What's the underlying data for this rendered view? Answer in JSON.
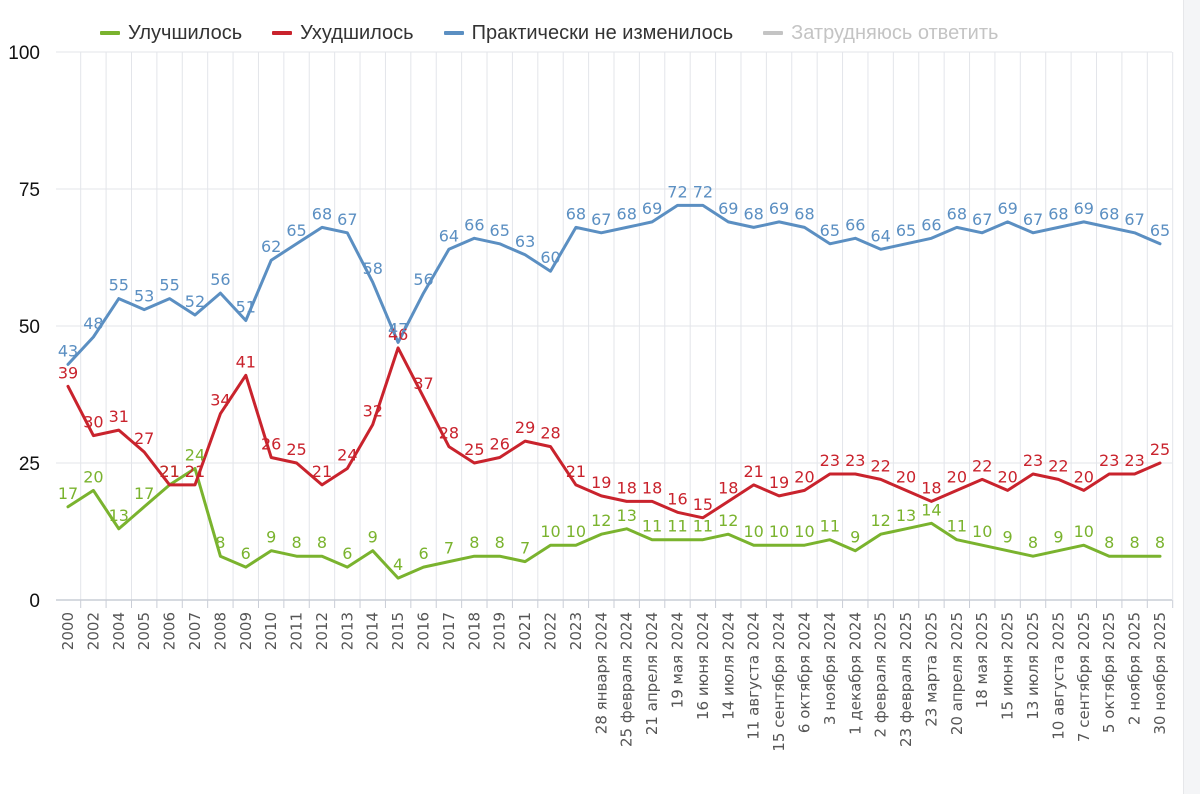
{
  "chart_data": {
    "type": "line",
    "title": "",
    "xlabel": "",
    "ylabel": "",
    "ylim": [
      0,
      100
    ],
    "yticks": [
      0,
      25,
      50,
      75,
      100
    ],
    "grid": true,
    "legend_position": "top-left",
    "categories": [
      "2000",
      "2002",
      "2004",
      "2005",
      "2006",
      "2007",
      "2008",
      "2009",
      "2010",
      "2011",
      "2012",
      "2013",
      "2014",
      "2015",
      "2016",
      "2017",
      "2018",
      "2019",
      "2021",
      "2022",
      "2023",
      "28 января 2024",
      "25 февраля 2024",
      "21 апреля 2024",
      "19 мая 2024",
      "16 июня 2024",
      "14 июля 2024",
      "11 августа 2024",
      "15 сентября 2024",
      "6 октября 2024",
      "3 ноября 2024",
      "1 декабря 2024",
      "2 февраля 2025",
      "23 февраля 2025",
      "23 марта 2025",
      "20 апреля 2025",
      "18 мая 2025",
      "15 июня 2025",
      "13 июля 2025",
      "10 августа 2025",
      "7 сентября 2025",
      "5 октября 2025",
      "2 ноября 2025",
      "30 ноября 2025"
    ],
    "series": [
      {
        "name": "Улучшилось",
        "color": "#7ab32e",
        "visible": true,
        "values": [
          17,
          20,
          13,
          17,
          21,
          24,
          8,
          6,
          9,
          8,
          8,
          6,
          9,
          4,
          6,
          7,
          8,
          8,
          7,
          10,
          10,
          12,
          13,
          11,
          11,
          11,
          12,
          10,
          10,
          10,
          11,
          9,
          12,
          13,
          14,
          11,
          10,
          9,
          8,
          9,
          10,
          8,
          8,
          8
        ]
      },
      {
        "name": "Ухудшилось",
        "color": "#c9232d",
        "visible": true,
        "values": [
          39,
          30,
          31,
          27,
          21,
          21,
          34,
          41,
          26,
          25,
          21,
          24,
          32,
          46,
          37,
          28,
          25,
          26,
          29,
          28,
          21,
          19,
          18,
          18,
          16,
          15,
          18,
          21,
          19,
          20,
          23,
          23,
          22,
          20,
          18,
          20,
          22,
          20,
          23,
          22,
          20,
          23,
          23,
          25
        ]
      },
      {
        "name": "Практически не изменилось",
        "color": "#5b8fc2",
        "visible": true,
        "values": [
          43,
          48,
          55,
          53,
          55,
          52,
          56,
          51,
          62,
          65,
          68,
          67,
          58,
          47,
          56,
          64,
          66,
          65,
          63,
          60,
          68,
          67,
          68,
          69,
          72,
          72,
          69,
          68,
          69,
          68,
          65,
          66,
          64,
          65,
          66,
          68,
          67,
          69,
          67,
          68,
          69,
          68,
          67,
          65
        ]
      },
      {
        "name": "Затрудняюсь ответить",
        "color": "#c4c4c4",
        "visible": false,
        "values": []
      }
    ]
  },
  "legend": {
    "items": [
      {
        "label": "Улучшилось",
        "color": "#7ab32e",
        "text_color": "#333333"
      },
      {
        "label": "Ухудшилось",
        "color": "#c9232d",
        "text_color": "#333333"
      },
      {
        "label": "Практически не изменилось",
        "color": "#5b8fc2",
        "text_color": "#333333"
      },
      {
        "label": "Затрудняюсь ответить",
        "color": "#c4c4c4",
        "text_color": "#c4c4c4"
      }
    ]
  }
}
